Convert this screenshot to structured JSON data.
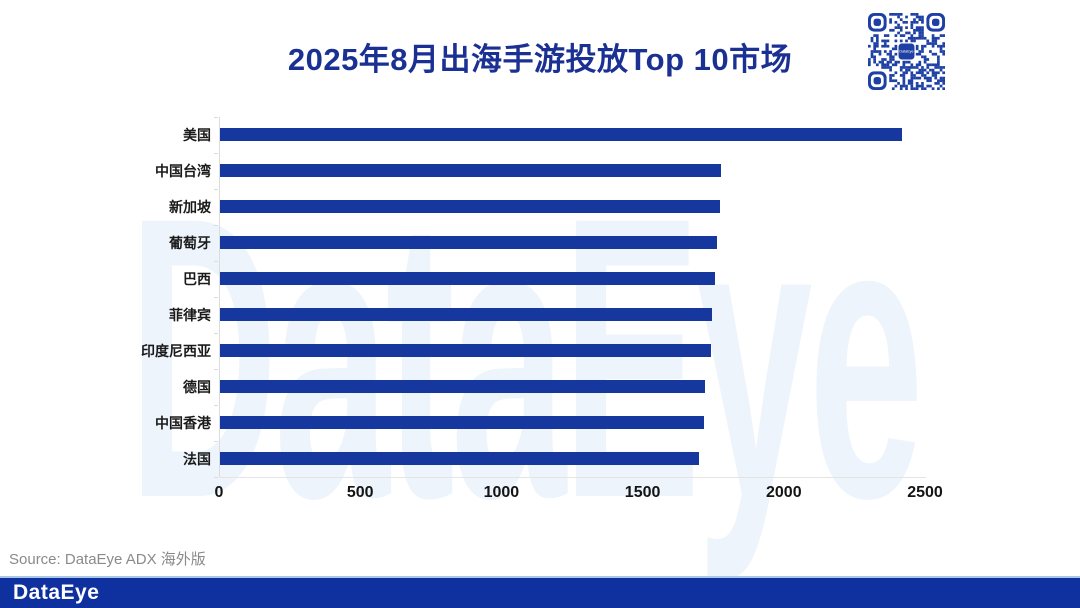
{
  "header": {
    "title": "2025年8月出海手游投放Top 10市场"
  },
  "qr": {
    "label": "DataEye"
  },
  "watermark": {
    "text": "DataEye"
  },
  "chart_data": {
    "type": "bar",
    "orientation": "horizontal",
    "title": "2025年8月出海手游投放Top 10市场",
    "categories": [
      "美国",
      "中国台湾",
      "新加坡",
      "葡萄牙",
      "巴西",
      "菲律宾",
      "印度尼西亚",
      "德国",
      "中国香港",
      "法国"
    ],
    "values": [
      2415,
      1775,
      1771,
      1760,
      1753,
      1741,
      1739,
      1716,
      1713,
      1697
    ],
    "xlim": [
      0,
      2500
    ],
    "x_ticks": [
      0,
      500,
      1000,
      1500,
      2000,
      2500
    ],
    "xlabel": "",
    "ylabel": "",
    "grid": false,
    "legend_position": "none",
    "bar_color": "#16389E"
  },
  "source": {
    "text": "Source: DataEye ADX 海外版"
  },
  "footer": {
    "logo": "DataEye"
  },
  "colors": {
    "title_text": "#1B3093",
    "bar": "#16389E",
    "category_label": "#1A1A1A",
    "axis_line": "#DCDCDC",
    "source_text": "#8A8A8A",
    "footer_bg": "#0F31A0",
    "footer_divider": "#A9C6E8",
    "watermark": "#EDF4FB",
    "qr_blue": "#1E40A5"
  }
}
